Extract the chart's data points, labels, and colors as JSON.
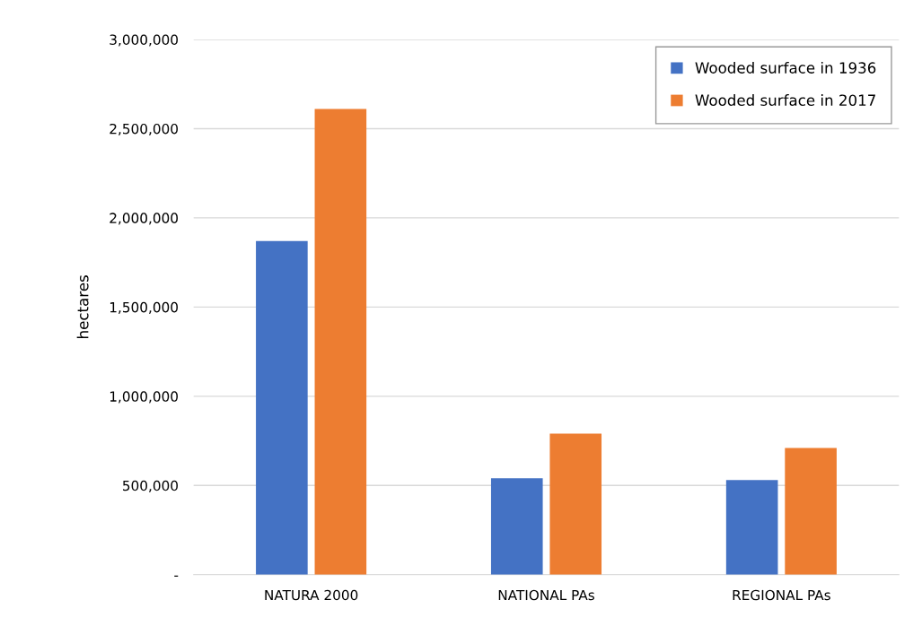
{
  "chart_data": {
    "type": "bar",
    "ylabel": "hectares",
    "categories": [
      "NATURA 2000",
      "NATIONAL PAs",
      "REGIONAL PAs"
    ],
    "series": [
      {
        "name": "Wooded surface in 1936",
        "color": "#4472c4",
        "values": [
          1870000,
          540000,
          530000
        ]
      },
      {
        "name": "Wooded surface in 2017",
        "color": "#ed7d31",
        "values": [
          2610000,
          790000,
          710000
        ]
      }
    ],
    "ylim": [
      0,
      3000000
    ],
    "yticks": [
      {
        "value": 0,
        "label": "-"
      },
      {
        "value": 500000,
        "label": "500,000"
      },
      {
        "value": 1000000,
        "label": "1,000,000"
      },
      {
        "value": 1500000,
        "label": "1,500,000"
      },
      {
        "value": 2000000,
        "label": "2,000,000"
      },
      {
        "value": 2500000,
        "label": "2,500,000"
      },
      {
        "value": 3000000,
        "label": "3,000,000"
      }
    ],
    "grid": "y",
    "legend": "top right"
  }
}
